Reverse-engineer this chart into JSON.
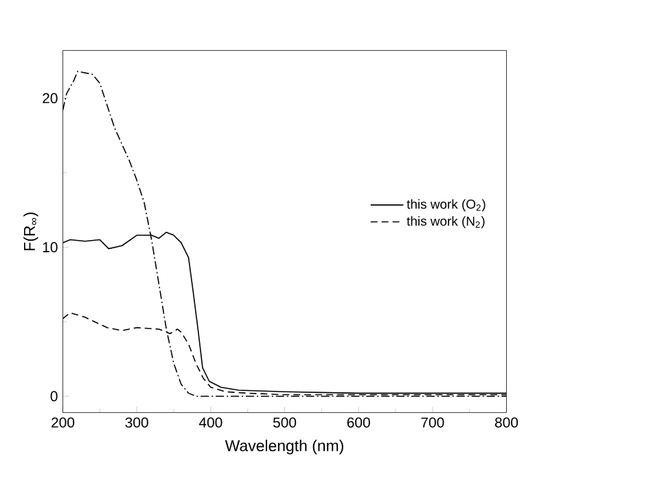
{
  "chart_data": {
    "type": "line",
    "xlabel": "Wavelength (nm)",
    "ylabel": "F(R$_{∞}$)",
    "xlim": [
      200,
      800
    ],
    "ylim": [
      -1.1,
      23.2
    ],
    "xticks": [
      200,
      300,
      400,
      500,
      600,
      700,
      800
    ],
    "yticks": [
      0,
      10,
      20
    ],
    "legend": "right",
    "grid": false,
    "marker": "none",
    "series": [
      {
        "name": "this work (O$_{2}$)",
        "color": "#000000",
        "line_style": "solid",
        "x": [
          200,
          210,
          230,
          250,
          262,
          280,
          300,
          320,
          330,
          340,
          350,
          360,
          370,
          376,
          383,
          389,
          398,
          414,
          438,
          500,
          600,
          700,
          800
        ],
        "values": [
          10.3,
          10.5,
          10.4,
          10.5,
          9.9,
          10.1,
          10.8,
          10.8,
          10.6,
          11.0,
          10.8,
          10.3,
          9.3,
          7.1,
          4.4,
          1.9,
          1.0,
          0.6,
          0.4,
          0.3,
          0.2,
          0.2,
          0.2
        ]
      },
      {
        "name": "this work (N$_{2}$)",
        "color": "#000000",
        "line_style": "dashed",
        "x": [
          200,
          210,
          230,
          260,
          280,
          300,
          330,
          345,
          355,
          360,
          370,
          380,
          390,
          400,
          420,
          450,
          500,
          600,
          800
        ],
        "values": [
          5.2,
          5.6,
          5.3,
          4.6,
          4.4,
          4.6,
          4.5,
          4.2,
          4.5,
          4.3,
          3.5,
          2.2,
          1.2,
          0.6,
          0.3,
          0.2,
          0.1,
          0.1,
          0.1
        ]
      },
      {
        "color": "#000000",
        "line_style": "dashdot",
        "x": [
          200,
          205,
          215,
          220,
          240,
          250,
          260,
          270,
          290,
          300,
          310,
          320,
          330,
          340,
          350,
          360,
          370,
          380,
          400,
          500,
          800
        ],
        "values": [
          19.2,
          20.3,
          21.2,
          21.8,
          21.6,
          21.0,
          19.5,
          18.0,
          15.8,
          14.5,
          13.0,
          10.5,
          7.5,
          4.5,
          2.2,
          0.8,
          0.2,
          0.0,
          0.0,
          0.0,
          0.0
        ]
      }
    ]
  }
}
